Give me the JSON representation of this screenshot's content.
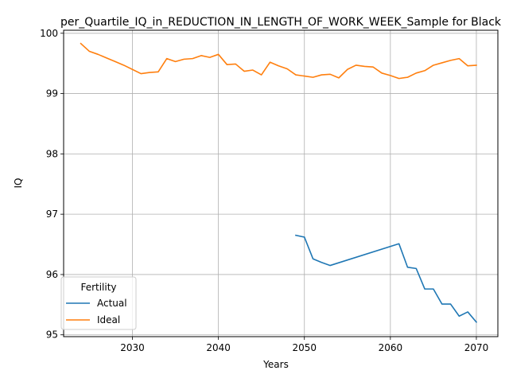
{
  "chart_data": {
    "type": "line",
    "title": "per_Quartile_IQ_in_REDUCTION_IN_LENGTH_OF_WORK_WEEK_Sample for Black",
    "xlabel": "Years",
    "ylabel": "IQ",
    "xlim": [
      2022,
      2072.5
    ],
    "ylim": [
      94.97,
      100.05
    ],
    "xticks": [
      2030,
      2040,
      2050,
      2060,
      2070
    ],
    "yticks": [
      95,
      96,
      97,
      98,
      99,
      100
    ],
    "grid": true,
    "legend": {
      "title": "Fertility",
      "placement": "lower-left"
    },
    "series": [
      {
        "name": "Actual",
        "color": "#1f77b4",
        "x": [
          2049,
          2050,
          2051,
          2052,
          2053,
          2061,
          2062,
          2063,
          2064,
          2065,
          2066,
          2067,
          2068,
          2069,
          2070
        ],
        "y": [
          96.65,
          96.62,
          96.26,
          96.2,
          96.15,
          96.51,
          96.12,
          96.1,
          95.76,
          95.76,
          95.51,
          95.51,
          95.31,
          95.38,
          95.21
        ]
      },
      {
        "name": "Ideal",
        "color": "#ff7f0e",
        "x": [
          2024,
          2025,
          2026,
          2027,
          2028,
          2029,
          2030,
          2031,
          2032,
          2033,
          2034,
          2035,
          2036,
          2037,
          2038,
          2039,
          2040,
          2041,
          2042,
          2043,
          2044,
          2045,
          2046,
          2047,
          2048,
          2049,
          2050,
          2051,
          2052,
          2053,
          2054,
          2055,
          2056,
          2057,
          2058,
          2059,
          2060,
          2061,
          2062,
          2063,
          2064,
          2065,
          2066,
          2067,
          2068,
          2069,
          2070
        ],
        "y": [
          99.83,
          99.7,
          99.65,
          99.59,
          99.53,
          99.47,
          99.4,
          99.33,
          99.35,
          99.36,
          99.58,
          99.53,
          99.57,
          99.58,
          99.63,
          99.6,
          99.65,
          99.48,
          99.49,
          99.37,
          99.39,
          99.31,
          99.52,
          99.46,
          99.41,
          99.31,
          99.29,
          99.27,
          99.31,
          99.32,
          99.26,
          99.4,
          99.47,
          99.45,
          99.44,
          99.34,
          99.3,
          99.25,
          99.27,
          99.34,
          99.38,
          99.47,
          99.51,
          99.55,
          99.58,
          99.46,
          99.47
        ]
      }
    ]
  }
}
